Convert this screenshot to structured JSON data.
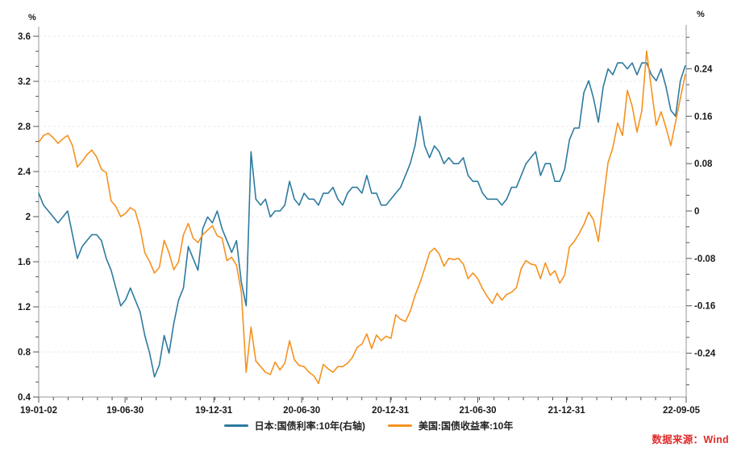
{
  "source_note": {
    "text": "数据来源：Wind",
    "color": "#e02c2c"
  },
  "chart_data": {
    "type": "line",
    "title": "",
    "grid": "horizontal-dashed",
    "legend_position": "bottom-center",
    "left_axis": {
      "unit": "%",
      "min": 0.4,
      "max": 3.6,
      "major_step": 0.4,
      "minor_per_major": 2,
      "majors": [
        {
          "v": 3.6,
          "label": "3.6"
        },
        {
          "v": 3.2,
          "label": "3.2"
        },
        {
          "v": 2.8,
          "label": "2.8"
        },
        {
          "v": 2.4,
          "label": "2.4"
        },
        {
          "v": 2.0,
          "label": "2"
        },
        {
          "v": 1.6,
          "label": "1.6"
        },
        {
          "v": 1.2,
          "label": "1.2"
        },
        {
          "v": 0.8,
          "label": "0.8"
        },
        {
          "v": 0.4,
          "label": "0.4"
        }
      ]
    },
    "right_axis": {
      "unit": "%",
      "min": -0.314,
      "max": 0.295,
      "major_step": 0.08,
      "minor_per_major": 2,
      "majors": [
        {
          "v": 0.24,
          "label": "0.24"
        },
        {
          "v": 0.16,
          "label": "0.16"
        },
        {
          "v": 0.08,
          "label": "0.08"
        },
        {
          "v": 0.0,
          "label": "0"
        },
        {
          "v": -0.08,
          "label": "-0.08"
        },
        {
          "v": -0.16,
          "label": "-0.16"
        },
        {
          "v": -0.24,
          "label": "-0.24"
        }
      ]
    },
    "x_axis": {
      "total_days": 1342,
      "minor_tick_interval_days": 30.44,
      "ticks": [
        {
          "label": "19-01-02",
          "day": 0
        },
        {
          "label": "19-06-30",
          "day": 179
        },
        {
          "label": "19-12-31",
          "day": 363
        },
        {
          "label": "20-06-30",
          "day": 545
        },
        {
          "label": "20-12-31",
          "day": 729
        },
        {
          "label": "21-06-30",
          "day": 910
        },
        {
          "label": "21-12-31",
          "day": 1094
        },
        {
          "label": "22-09-05",
          "day": 1342
        }
      ]
    },
    "series": [
      {
        "name": "日本:国债利率:10年(右轴)",
        "axis": "right",
        "color": "#2d7aa0",
        "step_days": 10,
        "values": [
          0.03,
          0.01,
          0.0,
          -0.01,
          -0.02,
          -0.01,
          0.0,
          -0.04,
          -0.08,
          -0.06,
          -0.05,
          -0.04,
          -0.04,
          -0.05,
          -0.08,
          -0.1,
          -0.13,
          -0.16,
          -0.15,
          -0.13,
          -0.15,
          -0.17,
          -0.21,
          -0.24,
          -0.28,
          -0.26,
          -0.21,
          -0.24,
          -0.19,
          -0.15,
          -0.13,
          -0.06,
          -0.08,
          -0.1,
          -0.03,
          -0.01,
          -0.02,
          0.0,
          -0.03,
          -0.05,
          -0.07,
          -0.05,
          -0.12,
          -0.16,
          0.1,
          0.02,
          0.01,
          0.02,
          -0.01,
          0.0,
          0.0,
          0.01,
          0.05,
          0.02,
          0.01,
          0.03,
          0.02,
          0.02,
          0.01,
          0.03,
          0.03,
          0.04,
          0.02,
          0.01,
          0.03,
          0.04,
          0.04,
          0.03,
          0.06,
          0.03,
          0.03,
          0.01,
          0.01,
          0.02,
          0.03,
          0.04,
          0.06,
          0.08,
          0.11,
          0.16,
          0.11,
          0.09,
          0.11,
          0.1,
          0.08,
          0.09,
          0.08,
          0.08,
          0.09,
          0.06,
          0.05,
          0.05,
          0.03,
          0.02,
          0.02,
          0.02,
          0.01,
          0.02,
          0.04,
          0.04,
          0.06,
          0.08,
          0.09,
          0.1,
          0.06,
          0.08,
          0.08,
          0.05,
          0.05,
          0.07,
          0.12,
          0.14,
          0.14,
          0.2,
          0.22,
          0.19,
          0.15,
          0.21,
          0.24,
          0.23,
          0.25,
          0.25,
          0.24,
          0.25,
          0.23,
          0.25,
          0.25,
          0.23,
          0.22,
          0.24,
          0.21,
          0.17,
          0.16,
          0.22,
          0.245
        ]
      },
      {
        "name": "美国:国债收益率:10年",
        "axis": "left",
        "color": "#f5921f",
        "step_days": 10,
        "values": [
          2.66,
          2.72,
          2.74,
          2.7,
          2.65,
          2.69,
          2.72,
          2.63,
          2.44,
          2.49,
          2.55,
          2.59,
          2.53,
          2.42,
          2.39,
          2.14,
          2.09,
          2.0,
          2.03,
          2.08,
          2.05,
          1.9,
          1.68,
          1.6,
          1.5,
          1.55,
          1.79,
          1.68,
          1.53,
          1.6,
          1.84,
          1.94,
          1.81,
          1.77,
          1.84,
          1.88,
          1.92,
          1.83,
          1.81,
          1.61,
          1.64,
          1.57,
          1.33,
          0.62,
          1.02,
          0.72,
          0.67,
          0.62,
          0.6,
          0.71,
          0.64,
          0.7,
          0.9,
          0.73,
          0.68,
          0.67,
          0.62,
          0.59,
          0.52,
          0.69,
          0.65,
          0.62,
          0.67,
          0.67,
          0.7,
          0.75,
          0.84,
          0.87,
          0.96,
          0.83,
          0.95,
          0.9,
          0.94,
          0.92,
          1.13,
          1.09,
          1.07,
          1.16,
          1.3,
          1.41,
          1.54,
          1.68,
          1.72,
          1.67,
          1.56,
          1.63,
          1.62,
          1.63,
          1.58,
          1.45,
          1.5,
          1.45,
          1.36,
          1.29,
          1.23,
          1.32,
          1.26,
          1.31,
          1.33,
          1.37,
          1.54,
          1.61,
          1.58,
          1.57,
          1.45,
          1.59,
          1.48,
          1.52,
          1.41,
          1.48,
          1.73,
          1.78,
          1.85,
          1.93,
          2.04,
          1.97,
          1.78,
          2.14,
          2.48,
          2.61,
          2.83,
          2.72,
          3.12,
          2.98,
          2.75,
          2.94,
          3.47,
          3.13,
          2.81,
          2.93,
          2.79,
          2.63,
          2.84,
          3.05,
          3.26
        ]
      }
    ],
    "style": {
      "gridline_color": "#e9e9e9",
      "axis_color": "#9a9a9a",
      "tick_color": "#555555",
      "label_color": "#1a1a1a"
    }
  }
}
